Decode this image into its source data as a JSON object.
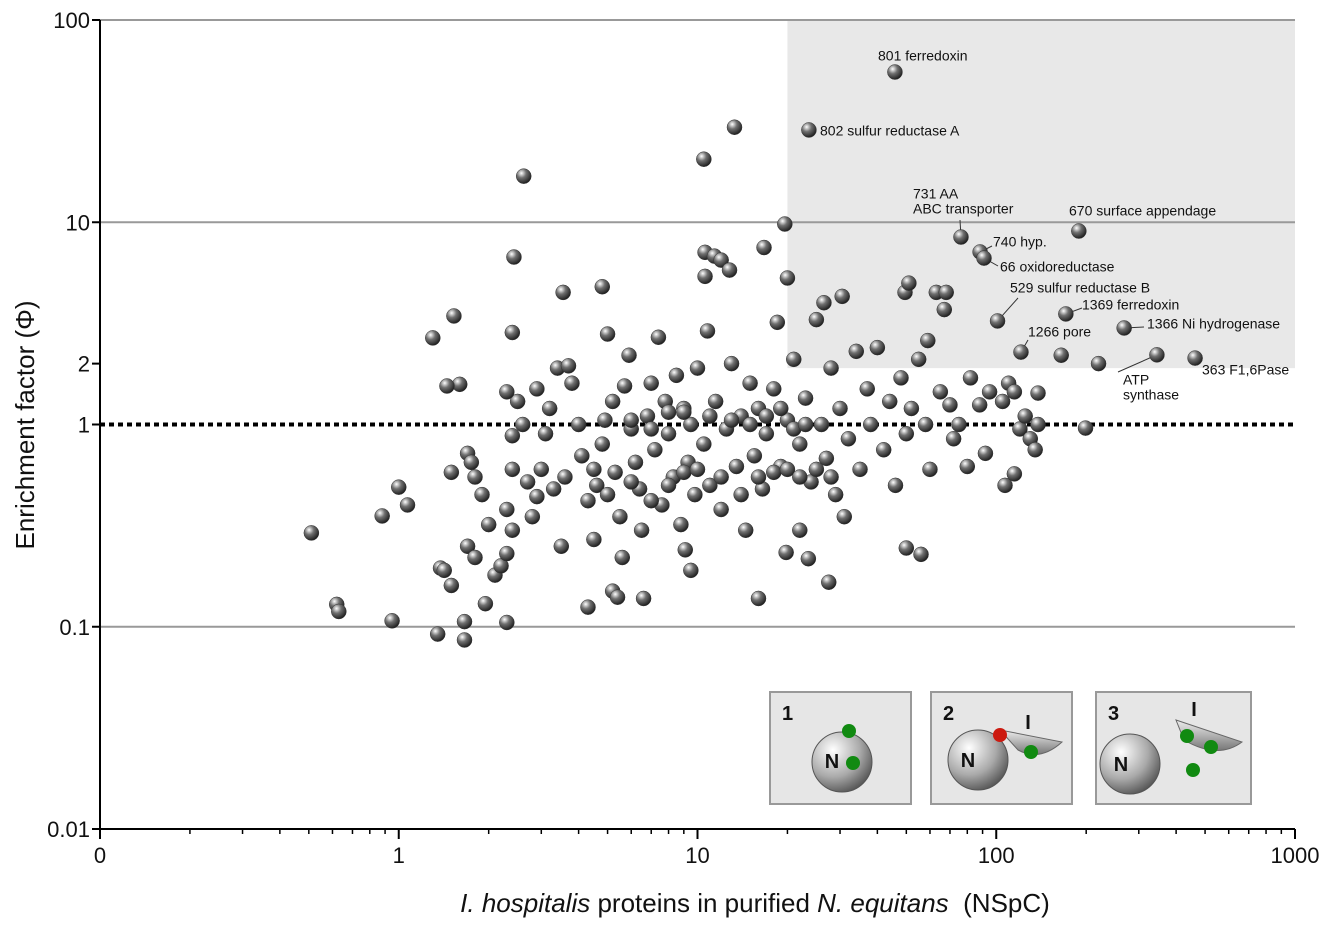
{
  "chart_data": {
    "type": "scatter",
    "ylabel": "Enrichment factor (Φ)",
    "xlabel": [
      "I. hospitalis",
      " proteins in purified ",
      "N. equitans",
      "  (NSpC)"
    ],
    "xscale": "log",
    "yscale": "log",
    "xlim": [
      0.1,
      1000
    ],
    "ylim": [
      0.01,
      100
    ],
    "xticks": [
      {
        "value": 0.1,
        "label": "0"
      },
      1,
      10,
      100,
      1000
    ],
    "xminorticks": [
      0.2,
      0.3,
      0.4,
      0.5,
      0.6,
      0.7,
      0.8,
      0.9,
      2,
      3,
      4,
      5,
      6,
      7,
      8,
      9,
      20,
      30,
      40,
      50,
      60,
      70,
      80,
      90,
      200,
      300,
      400,
      500,
      600,
      700,
      800,
      900
    ],
    "yticks": [
      {
        "value": 0.01,
        "label": "0.01"
      },
      {
        "value": 0.1,
        "label": "0.1"
      },
      1,
      2,
      10,
      100
    ],
    "grid_y": [
      0.1,
      10,
      100
    ],
    "reference_line": 1,
    "highlight": {
      "xlim": [
        20,
        1000
      ],
      "ylim": [
        1.9,
        100
      ],
      "color": "#e8e8e8"
    },
    "series": [
      {
        "color": "#707070",
        "x": [
          0.51,
          0.62,
          0.63,
          0.95,
          0.88,
          1.0,
          1.07,
          1.3,
          1.53,
          2.62,
          2.43,
          2.4,
          3.55,
          4.8,
          10.5,
          13.3,
          19.6,
          16.7,
          10.6,
          11.4,
          12,
          12.8,
          10.6,
          20,
          30.5,
          26.5,
          49.5,
          51,
          63,
          68,
          67,
          59,
          165,
          220,
          199,
          138,
          138,
          1.35,
          1.66,
          1.66,
          2.3,
          1.95,
          1.5,
          1.38,
          1.42,
          4.3,
          5.2,
          5.4,
          6.6,
          16,
          27.5,
          23.5,
          22,
          19.8,
          50,
          56,
          9.5,
          9.1,
          31,
          107,
          115,
          1.5,
          1.6,
          1.45,
          1.7,
          1.75,
          1.8,
          1.9,
          1.7,
          1.8,
          2.0,
          2.1,
          2.2,
          2.3,
          2.4,
          2.3,
          2.4,
          2.4,
          2.5,
          2.3,
          2.6,
          2.7,
          2.8,
          2.9,
          3.0,
          3.1,
          2.9,
          3.2,
          3.3,
          3.5,
          3.6,
          3.4,
          3.7,
          3.8,
          4.0,
          4.1,
          4.3,
          4.5,
          4.6,
          4.8,
          4.9,
          5.0,
          5.2,
          5.3,
          5.5,
          5.6,
          5.7,
          5.9,
          6.0,
          6.2,
          6.4,
          6.5,
          6.8,
          7.0,
          7.2,
          7.4,
          7.6,
          7.8,
          8.0,
          8.3,
          8.5,
          8.8,
          9.0,
          9.3,
          9.5,
          9.8,
          10,
          10.5,
          10.8,
          11,
          11.5,
          12,
          12.5,
          13,
          13.5,
          14,
          14.5,
          15,
          15.5,
          16,
          16.5,
          17,
          18,
          18.5,
          19,
          20,
          21,
          22,
          23,
          24,
          25,
          26,
          27,
          28,
          29,
          30,
          32,
          34,
          35,
          37,
          38,
          40,
          42,
          44,
          46,
          48,
          50,
          52,
          55,
          58,
          60,
          65,
          70,
          72,
          75,
          80,
          82,
          88,
          92,
          95,
          110,
          120,
          125,
          130,
          135,
          115,
          105,
          9,
          11,
          13,
          15,
          17,
          19,
          21,
          23,
          6,
          7,
          8,
          4.5,
          5,
          6,
          7,
          8,
          9,
          10,
          12,
          14,
          16,
          18,
          20,
          22,
          25,
          28
        ],
        "values": [
          0.291,
          0.129,
          0.119,
          0.107,
          0.353,
          0.49,
          0.4,
          2.68,
          3.44,
          16.9,
          6.73,
          2.85,
          4.5,
          4.8,
          20.5,
          29.5,
          9.8,
          7.5,
          7.1,
          6.8,
          6.5,
          5.8,
          5.4,
          5.3,
          4.3,
          4.0,
          4.5,
          5.0,
          4.5,
          4.5,
          3.7,
          2.6,
          2.2,
          2.0,
          0.96,
          1.43,
          1.0,
          0.092,
          0.086,
          0.106,
          0.105,
          0.13,
          0.16,
          0.195,
          0.19,
          0.125,
          0.15,
          0.14,
          0.138,
          0.138,
          0.166,
          0.217,
          0.3,
          0.233,
          0.245,
          0.228,
          0.19,
          0.24,
          0.35,
          0.5,
          0.57,
          0.58,
          1.58,
          1.55,
          0.72,
          0.65,
          0.55,
          0.45,
          0.25,
          0.22,
          0.32,
          0.18,
          0.2,
          0.23,
          0.3,
          0.38,
          0.6,
          0.88,
          1.3,
          1.45,
          1.0,
          0.52,
          0.35,
          0.44,
          0.6,
          0.9,
          1.5,
          1.2,
          0.48,
          0.25,
          0.55,
          1.9,
          1.95,
          1.6,
          1.0,
          0.7,
          0.42,
          0.27,
          0.5,
          0.8,
          1.05,
          2.8,
          1.3,
          0.58,
          0.35,
          0.22,
          1.55,
          2.2,
          0.95,
          0.65,
          0.48,
          0.3,
          1.1,
          1.6,
          0.75,
          2.7,
          0.4,
          1.3,
          0.9,
          0.55,
          1.75,
          0.32,
          1.2,
          0.65,
          1.0,
          0.45,
          1.9,
          0.8,
          2.9,
          0.5,
          1.3,
          0.38,
          0.95,
          2.0,
          0.62,
          1.1,
          0.3,
          1.6,
          0.7,
          1.2,
          0.48,
          0.9,
          1.5,
          3.2,
          0.62,
          1.05,
          2.1,
          0.8,
          1.35,
          0.52,
          3.3,
          1.0,
          0.68,
          1.9,
          0.45,
          1.2,
          0.85,
          2.3,
          0.6,
          1.5,
          1.0,
          2.4,
          0.75,
          1.3,
          0.5,
          1.7,
          0.9,
          1.2,
          2.1,
          1.0,
          0.6,
          1.45,
          1.25,
          0.85,
          1.0,
          0.62,
          1.7,
          1.25,
          0.72,
          1.45,
          1.6,
          0.95,
          1.1,
          0.85,
          0.75,
          1.45,
          1.3,
          1.15,
          1.1,
          1.05,
          1.0,
          1.1,
          1.2,
          0.95,
          1.0,
          1.05,
          0.95,
          1.15,
          0.6,
          0.45,
          0.52,
          0.42,
          0.5,
          0.58,
          0.6,
          0.55,
          0.45,
          0.55,
          0.58,
          0.6,
          0.55,
          0.6,
          0.55
        ]
      }
    ],
    "annotations": [
      {
        "x": 45.8,
        "y": 55.3,
        "label": [
          "801 ferredoxin"
        ]
      },
      {
        "x": 23.6,
        "y": 28.6,
        "label": [
          "802 sulfur reductase A"
        ]
      },
      {
        "x": 76.2,
        "y": 8.45,
        "label": [
          "731 AA",
          "ABC transporter"
        ]
      },
      {
        "x": 189,
        "y": 9.05,
        "label": [
          "670 surface appendage"
        ]
      },
      {
        "x": 88.3,
        "y": 7.13,
        "label": [
          "740 hyp."
        ]
      },
      {
        "x": 91,
        "y": 6.65,
        "label": [
          "66 oxidoreductase"
        ]
      },
      {
        "x": 101,
        "y": 3.25,
        "label": [
          "529 sulfur reductase B"
        ]
      },
      {
        "x": 171,
        "y": 3.52,
        "label": [
          "1369 ferredoxin"
        ]
      },
      {
        "x": 121,
        "y": 2.28,
        "label": [
          "1266 pore"
        ]
      },
      {
        "x": 268,
        "y": 3.0,
        "label": [
          "1366 Ni hydrogenase"
        ]
      },
      {
        "x": 345,
        "y": 2.21,
        "label": [
          "ATP",
          "synthase"
        ]
      },
      {
        "x": 463,
        "y": 2.13,
        "label": [
          "363 F1,6Pase"
        ]
      }
    ],
    "insets": [
      {
        "number": "1",
        "nucleus": "N"
      },
      {
        "number": "2",
        "nucleus": "N",
        "cell": "I"
      },
      {
        "number": "3",
        "nucleus": "N",
        "cell": "I"
      }
    ]
  }
}
